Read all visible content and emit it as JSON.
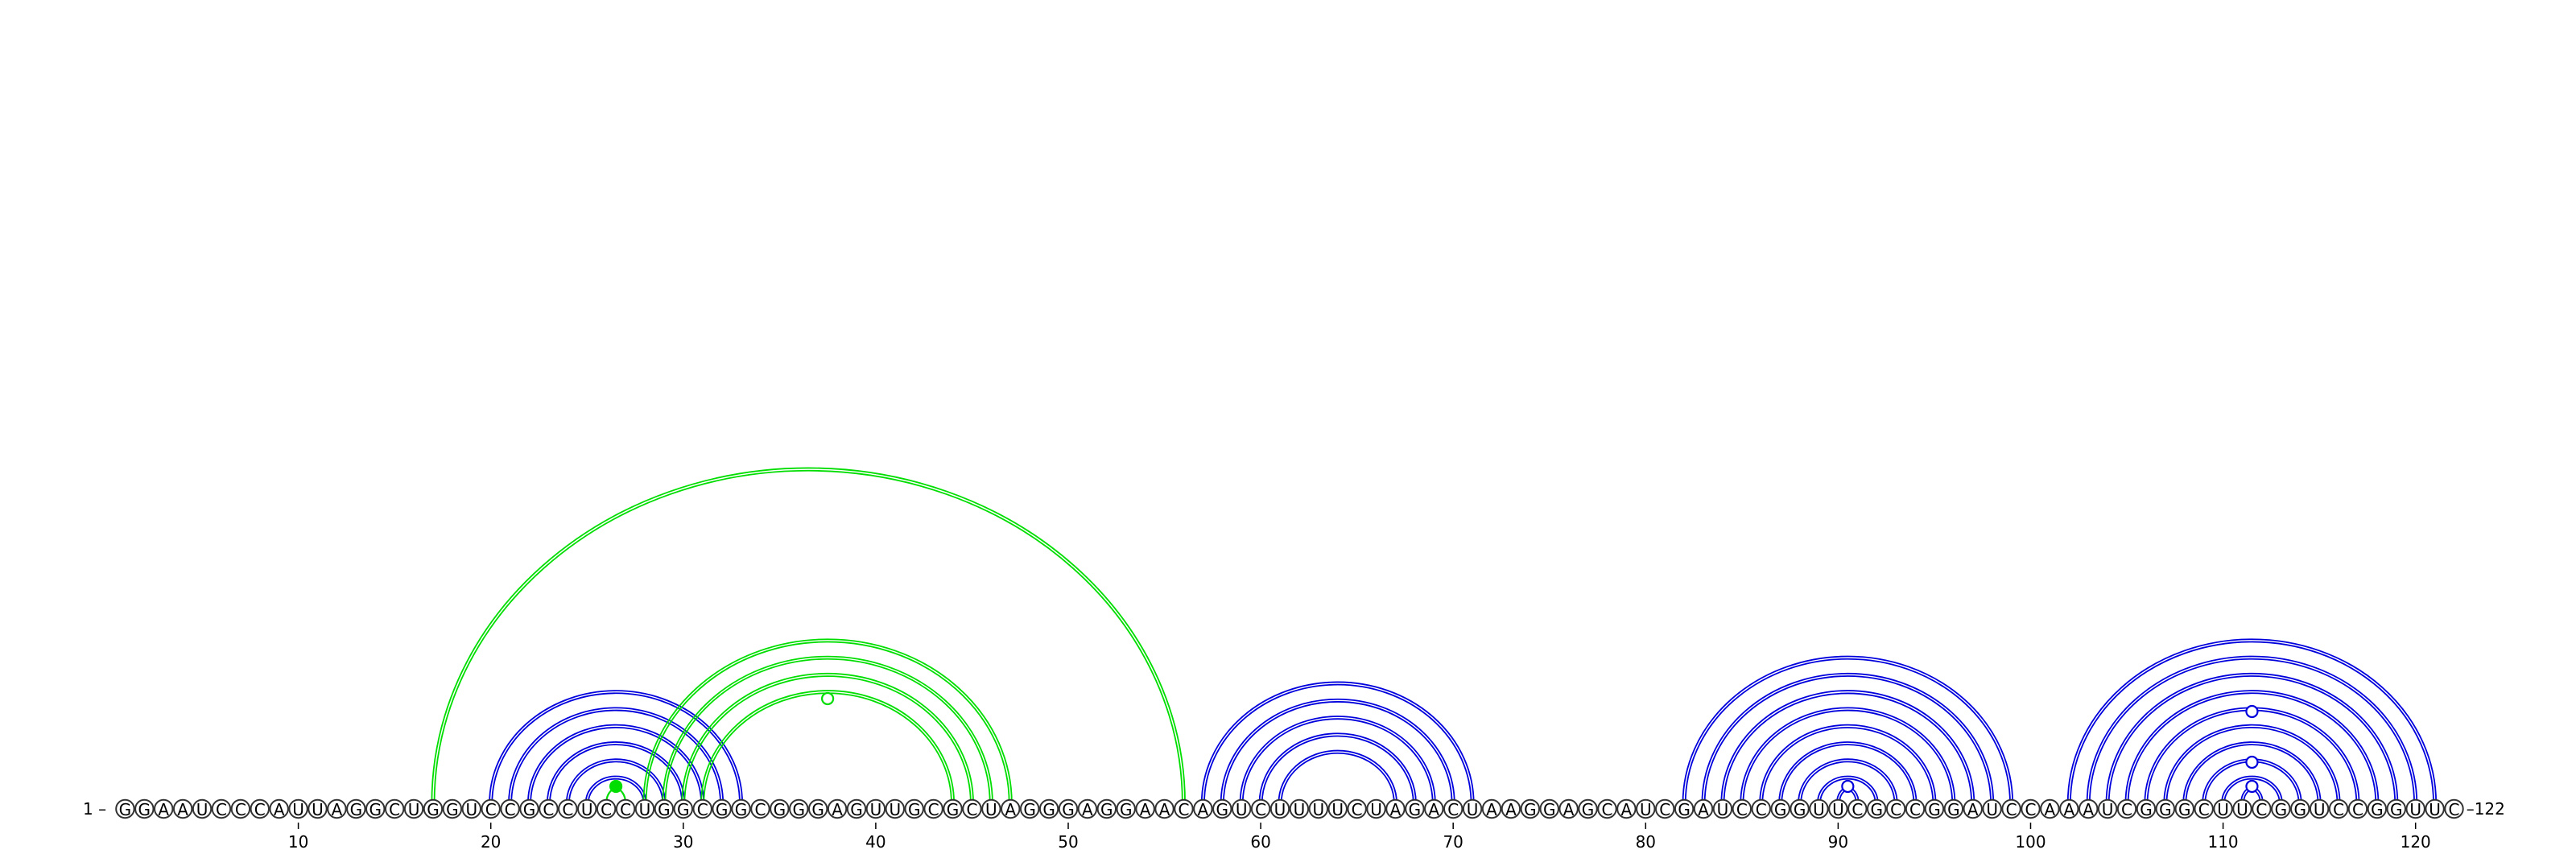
{
  "sequence": "GGAAUCCCAUUAGGCUGGUCCGCCUCCUGGCGGCGGGAGUUGCGCUAGGGAGGAACAGUCUUUUCUAGACUAAGGAGCAUCGAUCCGGUUCGCCGGAUCCAAAUCGGGCUUCGGUCCGGUUC",
  "start_label": "1 –",
  "end_label": "–122",
  "ticks": [
    "10",
    "20",
    "30",
    "40",
    "50",
    "60",
    "70",
    "80",
    "90",
    "100",
    "110",
    "120"
  ],
  "tick_positions": [
    10,
    20,
    30,
    40,
    50,
    60,
    70,
    80,
    90,
    100,
    110,
    120
  ],
  "colors": {
    "blue": "#0000dd",
    "green": "#00dd00"
  },
  "arc_groups": [
    {
      "color": "green",
      "pairs": [
        [
          17,
          56
        ]
      ],
      "doubled": true
    },
    {
      "color": "blue",
      "pairs": [
        [
          20,
          33
        ],
        [
          21,
          32
        ],
        [
          22,
          31
        ],
        [
          23,
          30
        ],
        [
          24,
          29
        ],
        [
          25,
          28
        ]
      ],
      "doubled": true
    },
    {
      "color": "green",
      "pairs": [
        [
          26,
          27
        ]
      ],
      "doubled": false
    },
    {
      "color": "green",
      "pairs": [
        [
          28,
          47
        ],
        [
          29,
          46
        ],
        [
          30,
          45
        ],
        [
          31,
          44
        ]
      ],
      "doubled": true
    },
    {
      "color": "blue",
      "pairs": [
        [
          57,
          71
        ],
        [
          58,
          70
        ],
        [
          59,
          69
        ],
        [
          60,
          68
        ],
        [
          61,
          67
        ]
      ],
      "doubled": true
    },
    {
      "color": "blue",
      "pairs": [
        [
          82,
          99
        ],
        [
          83,
          98
        ],
        [
          84,
          97
        ],
        [
          85,
          96
        ],
        [
          86,
          95
        ],
        [
          87,
          94
        ],
        [
          88,
          93
        ],
        [
          89,
          92
        ],
        [
          90,
          91
        ]
      ],
      "doubled": true
    },
    {
      "color": "blue",
      "pairs": [
        [
          102,
          121
        ],
        [
          103,
          120
        ],
        [
          104,
          119
        ],
        [
          105,
          118
        ],
        [
          106,
          117
        ],
        [
          107,
          116
        ],
        [
          108,
          115
        ],
        [
          109,
          114
        ],
        [
          110,
          113
        ],
        [
          111,
          112
        ]
      ],
      "doubled": true
    }
  ],
  "loop_markers": [
    {
      "position": 26.5,
      "color": "green",
      "filled": true,
      "level": 1
    },
    {
      "position": 37.5,
      "color": "green",
      "filled": false,
      "level": 5
    },
    {
      "position": 90.5,
      "color": "blue",
      "filled": false,
      "level": 1
    },
    {
      "position": 111.5,
      "color": "blue",
      "filled": false,
      "level": 1
    },
    {
      "position": 111.5,
      "color": "blue",
      "filled": false,
      "level": 3
    },
    {
      "position": 111.5,
      "color": "blue",
      "filled": false,
      "level": 6
    }
  ]
}
